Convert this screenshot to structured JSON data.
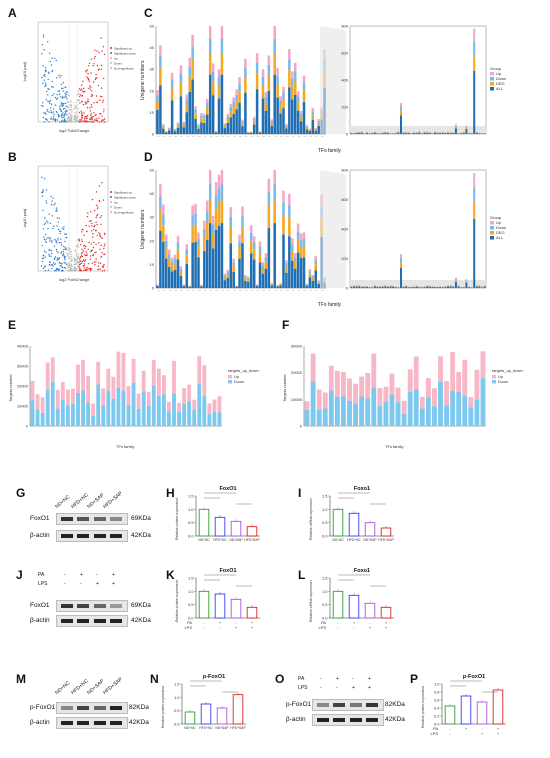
{
  "panels": {
    "A": "A",
    "B": "B",
    "C": "C",
    "D": "D",
    "E": "E",
    "F": "F",
    "G": "G",
    "H": "H",
    "I": "I",
    "J": "J",
    "K": "K",
    "L": "L",
    "M": "M",
    "N": "N",
    "O": "O",
    "P": "P"
  },
  "volcano": {
    "xlabel": "log2 FoldChange",
    "ylabel": "-log10 padj",
    "legend": [
      "Significant up",
      "Significant down",
      "Up",
      "Down",
      "Non-significant"
    ]
  },
  "tf_charts": {
    "ylabel": "Unigene numbers",
    "xlabel": "TFs family",
    "legend_title": "Group",
    "legend": [
      "Up",
      "Down",
      "DEG",
      "ALL"
    ],
    "colors": {
      "Up": "#f4a6c8",
      "Down": "#7ab8e6",
      "DEG": "#f5a623",
      "ALL": "#1f6fb2"
    },
    "left_ylim": [
      0,
      50
    ],
    "left_ticks": [
      "0",
      "10",
      "20",
      "30",
      "40",
      "50"
    ],
    "right_ylim": [
      0,
      800
    ],
    "right_ticks": [
      "0",
      "200",
      "400",
      "600",
      "800"
    ]
  },
  "targets_charts": {
    "ylabel": "Targets number",
    "xlabel": "TFs family",
    "legend_title": "targets_up_down",
    "legend": [
      "Up",
      "Down"
    ],
    "colors": {
      "Up": "#f7b7c6",
      "Down": "#7cc8ee"
    },
    "E_ticks": [
      "0",
      "10000",
      "20000",
      "30000",
      "40000"
    ],
    "F_ticks": [
      "0",
      "10000",
      "20000",
      "30000"
    ]
  },
  "blots": {
    "G": {
      "lanes": [
        "ND+NC",
        "HFD+NC",
        "ND+SAP",
        "HFD+SAP"
      ],
      "rows": [
        "FoxO1",
        "β-actin"
      ],
      "kda": [
        "69KDa",
        "42KDa"
      ]
    },
    "J": {
      "treat_rows": [
        "PA",
        "LPS"
      ],
      "treat_PA": [
        "-",
        "+",
        "-",
        "+"
      ],
      "treat_LPS": [
        "-",
        "-",
        "+",
        "+"
      ],
      "rows": [
        "FoxO1",
        "β-actin"
      ],
      "kda": [
        "69KDa",
        "42KDa"
      ]
    },
    "M": {
      "lanes": [
        "ND+NC",
        "HFD+NC",
        "ND+SAP",
        "HFD+SAP"
      ],
      "rows": [
        "p-FoxO1",
        "β-actin"
      ],
      "kda": [
        "82KDa",
        "42KDa"
      ]
    },
    "O": {
      "treat_rows": [
        "PA",
        "LPS"
      ],
      "treat_PA": [
        "-",
        "+",
        "-",
        "+"
      ],
      "treat_LPS": [
        "-",
        "-",
        "+",
        "+"
      ],
      "rows": [
        "p-FoxO1",
        "β-actin"
      ],
      "kda": [
        "82KDa",
        "42KDa"
      ]
    }
  },
  "chart_data": [
    {
      "panel": "H",
      "type": "bar",
      "title": "FoxO1",
      "ylabel": "Relative protein expression",
      "categories": [
        "ND+NC",
        "HFD+NC",
        "ND+SAP",
        "HFD+SAP"
      ],
      "values": [
        1.0,
        0.7,
        0.55,
        0.35
      ],
      "ylim": [
        0,
        1.5
      ],
      "colors": [
        "#2ca02c",
        "#3a3aff",
        "#b050e0",
        "#e02020"
      ]
    },
    {
      "panel": "I",
      "type": "bar",
      "title": "Foxo1",
      "ylabel": "Relative mRNA expression",
      "categories": [
        "ND+NC",
        "HFD+NC",
        "ND+SAP",
        "HFD+SAP"
      ],
      "values": [
        1.0,
        0.85,
        0.5,
        0.3
      ],
      "ylim": [
        0,
        1.5
      ],
      "colors": [
        "#2ca02c",
        "#3a3aff",
        "#b050e0",
        "#e02020"
      ]
    },
    {
      "panel": "K",
      "type": "bar",
      "title": "FoxO1",
      "ylabel": "Relative protein expression",
      "categories": [
        "1",
        "2",
        "3",
        "4"
      ],
      "values": [
        1.0,
        0.9,
        0.7,
        0.4
      ],
      "ylim": [
        0,
        1.5
      ],
      "colors": [
        "#2ca02c",
        "#3a3aff",
        "#b050e0",
        "#e02020"
      ],
      "PA": [
        "-",
        "+",
        "-",
        "+"
      ],
      "LPS": [
        "-",
        "-",
        "+",
        "+"
      ]
    },
    {
      "panel": "L",
      "type": "bar",
      "title": "Foxo1",
      "ylabel": "Relative mRNA expression",
      "categories": [
        "1",
        "2",
        "3",
        "4"
      ],
      "values": [
        1.0,
        0.85,
        0.55,
        0.4
      ],
      "ylim": [
        0,
        1.5
      ],
      "colors": [
        "#2ca02c",
        "#3a3aff",
        "#b050e0",
        "#e02020"
      ],
      "PA": [
        "-",
        "+",
        "-",
        "+"
      ],
      "LPS": [
        "-",
        "-",
        "+",
        "+"
      ]
    },
    {
      "panel": "N",
      "type": "bar",
      "title": "p-FoxO1",
      "ylabel": "Relative protein expression",
      "categories": [
        "ND+NC",
        "HFD+NC",
        "ND+SAP",
        "HFD+SAP"
      ],
      "values": [
        0.45,
        0.75,
        0.6,
        1.1
      ],
      "ylim": [
        0,
        1.5
      ],
      "colors": [
        "#2ca02c",
        "#3a3aff",
        "#b050e0",
        "#e02020"
      ]
    },
    {
      "panel": "P",
      "type": "bar",
      "title": "p-FoxO1",
      "ylabel": "Relative protein expression",
      "categories": [
        "1",
        "2",
        "3",
        "4"
      ],
      "values": [
        0.45,
        0.7,
        0.55,
        0.85
      ],
      "ylim": [
        0,
        1.0
      ],
      "colors": [
        "#2ca02c",
        "#3a3aff",
        "#b050e0",
        "#e02020"
      ],
      "PA": [
        "-",
        "+",
        "-",
        "+"
      ],
      "LPS": [
        "-",
        "-",
        "+",
        "+"
      ]
    }
  ],
  "axis_ticks_bar": [
    "0.0",
    "0.5",
    "1.0",
    "1.5"
  ],
  "axis_ticks_P": [
    "0.0",
    "0.2",
    "0.4",
    "0.6",
    "0.8",
    "1.0"
  ]
}
